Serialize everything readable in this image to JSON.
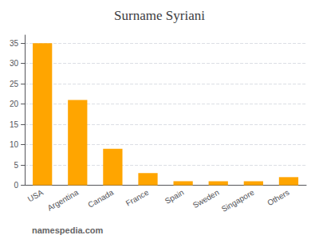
{
  "chart_data": {
    "type": "bar",
    "title": "Surname Syriani",
    "categories": [
      "USA",
      "Argentina",
      "Canada",
      "France",
      "Spain",
      "Sweden",
      "Singapore",
      "Others"
    ],
    "values": [
      35,
      21,
      9,
      3,
      1,
      1,
      1,
      2
    ],
    "color": "#FFA500",
    "ylim": [
      0,
      37
    ],
    "yticks": [
      0,
      5,
      10,
      15,
      20,
      25,
      30,
      35
    ],
    "grid": true,
    "annotations": [
      "namespedia.com"
    ]
  }
}
